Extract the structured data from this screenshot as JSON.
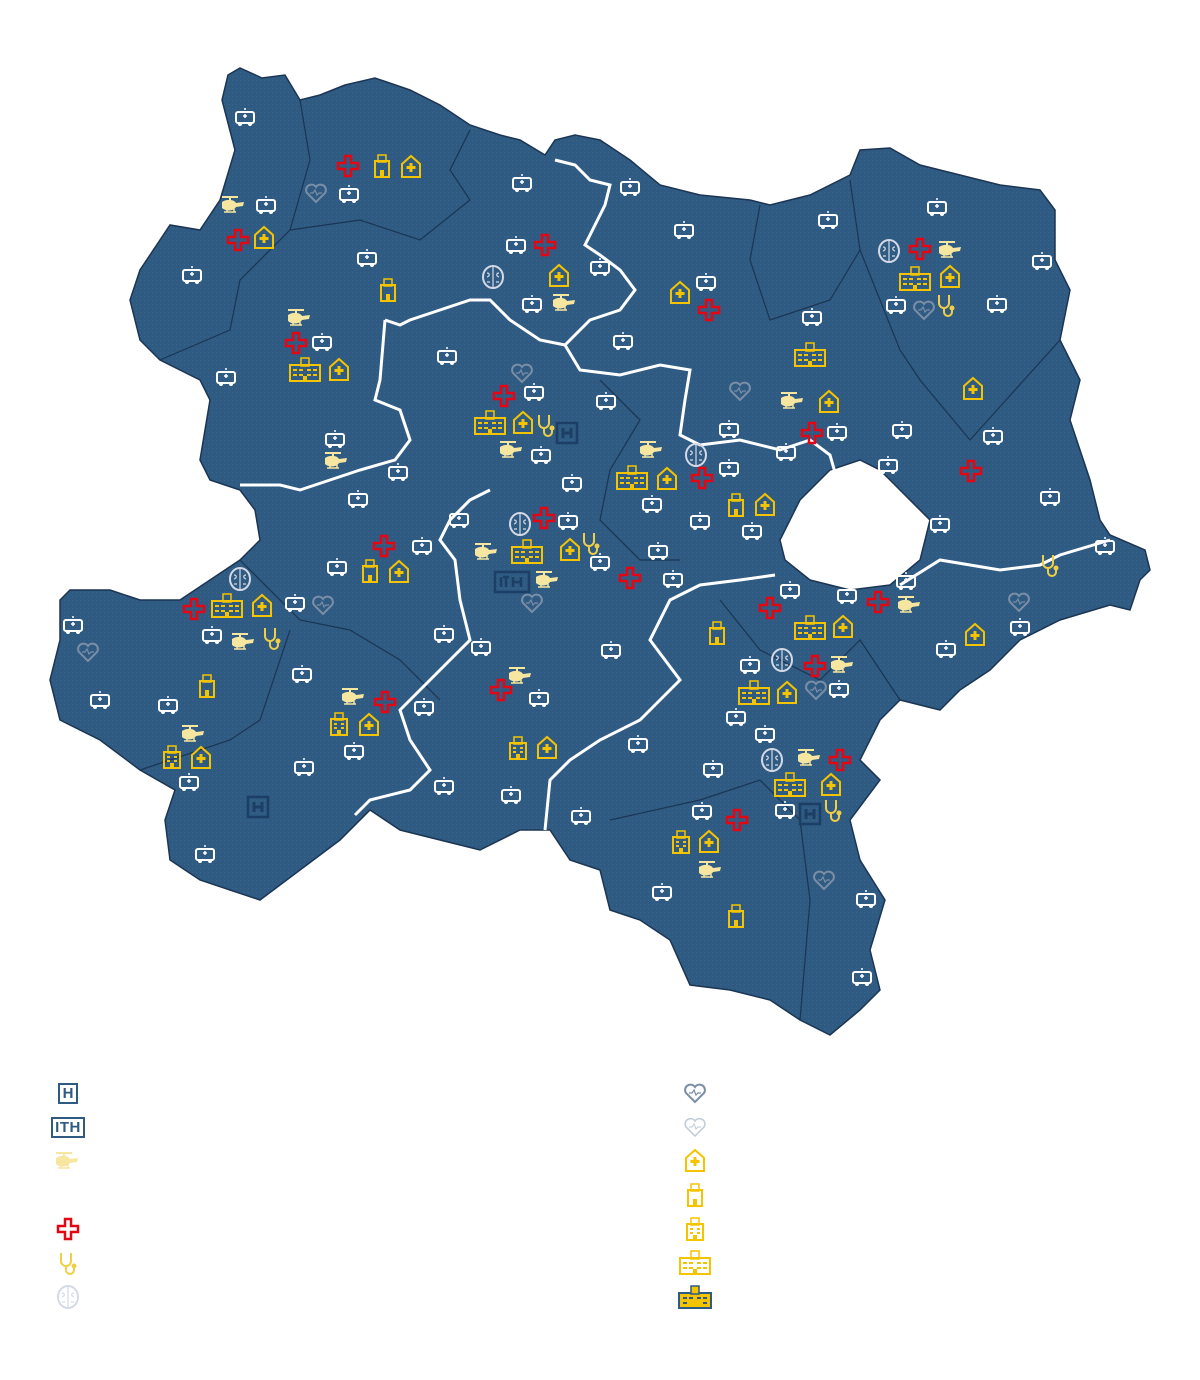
{
  "colors": {
    "region_fill": "#2f5a82",
    "district_border": "#1b3553",
    "state_border": "#ffffff",
    "ambulance": "#ffffff",
    "red_cross": "#e30613",
    "hospital_yellow": "#f5c400",
    "helicopter": "#f7e6a0",
    "heart": "#7a8ea6",
    "brain": "#d4d9e6",
    "navy_badge": "#1d3f66"
  },
  "legend": {
    "left": [
      {
        "icon": "hospital-h-icon",
        "text": "H"
      },
      {
        "icon": "ith-icon",
        "text": "ITH"
      },
      {
        "icon": "helicopter-icon"
      },
      {
        "icon": "red-cross-icon"
      },
      {
        "icon": "stethoscope-icon"
      },
      {
        "icon": "brain-icon"
      }
    ],
    "right": [
      {
        "icon": "heart-pulse-icon"
      },
      {
        "icon": "heart-pulse-light-icon"
      },
      {
        "icon": "pharmacy-house-icon"
      },
      {
        "icon": "small-clinic-icon"
      },
      {
        "icon": "medium-hospital-icon"
      },
      {
        "icon": "large-hospital-icon"
      },
      {
        "icon": "hospital-complex-icon"
      }
    ]
  }
}
